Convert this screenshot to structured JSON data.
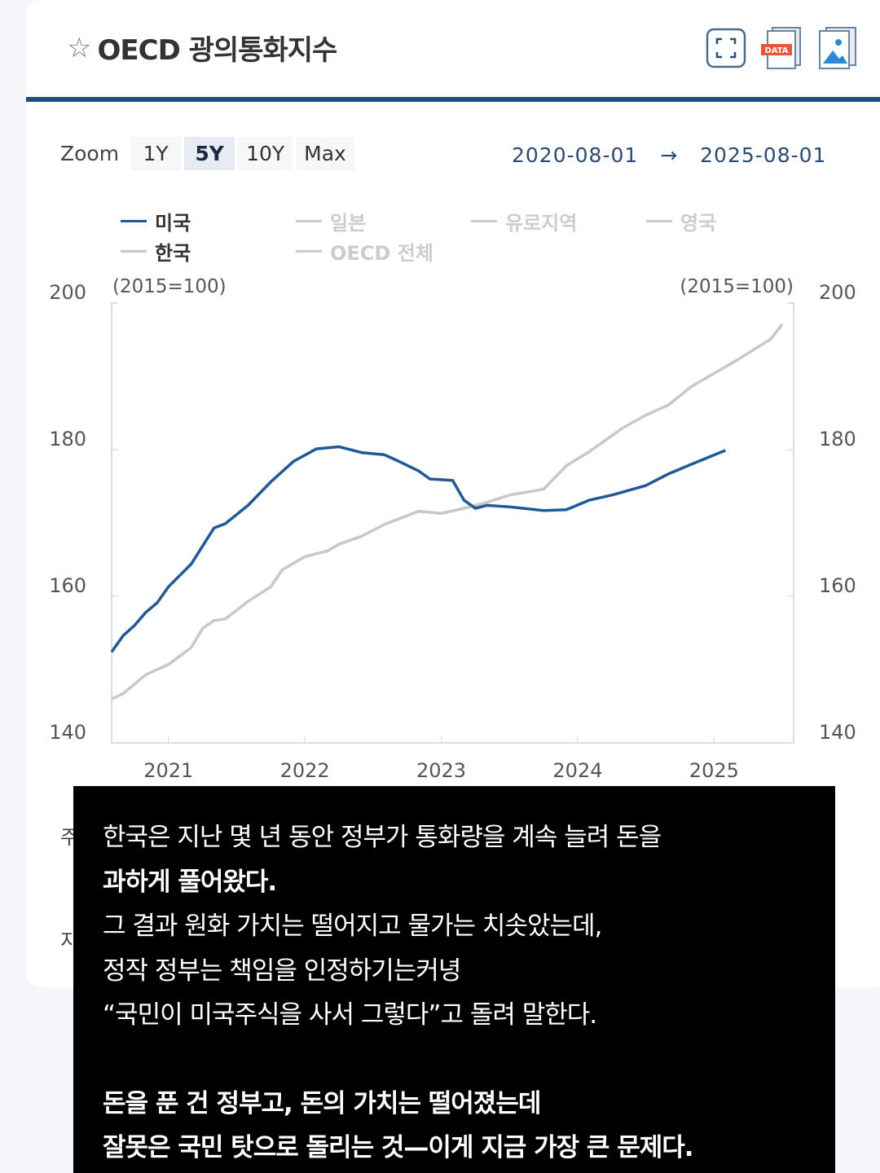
{
  "header": {
    "title": "OECD 광의통화지수",
    "icons": [
      "star-icon",
      "fullscreen-icon",
      "data-download-icon",
      "image-download-icon"
    ],
    "data_badge": "DATA"
  },
  "zoom": {
    "label": "Zoom",
    "options": [
      "1Y",
      "5Y",
      "10Y",
      "Max"
    ],
    "selected": "5Y"
  },
  "range": {
    "start": "2020-08-01",
    "arrow": "→",
    "end": "2025-08-01"
  },
  "colors": {
    "accent": "#1c4f7c",
    "us": "#1f5a96",
    "korea": "#c8c8c8"
  },
  "chart_data": {
    "type": "line",
    "unit_left": "(2015=100)",
    "unit_right": "(2015=100)",
    "ylim": [
      140,
      200
    ],
    "yticks": [
      "200",
      "180",
      "160",
      "140"
    ],
    "xlim": [
      "2020-08",
      "2025-08"
    ],
    "xticks": [
      "2021",
      "2022",
      "2023",
      "2024",
      "2025"
    ],
    "legend": [
      {
        "name": "미국",
        "visible": true
      },
      {
        "name": "일본",
        "visible": false
      },
      {
        "name": "유로지역",
        "visible": false
      },
      {
        "name": "영국",
        "visible": false
      },
      {
        "name": "한국",
        "visible": true
      },
      {
        "name": "OECD 전체",
        "visible": false
      }
    ],
    "legend_position": "top-left",
    "grid": false,
    "series": [
      {
        "name": "미국",
        "color": "#1f5a96",
        "points": [
          [
            "2020-08",
            152.4
          ],
          [
            "2020-09",
            154.6
          ],
          [
            "2020-10",
            156
          ],
          [
            "2020-11",
            157.8
          ],
          [
            "2020-12",
            159.1
          ],
          [
            "2021-01",
            161.3
          ],
          [
            "2021-03",
            164.4
          ],
          [
            "2021-05",
            169.3
          ],
          [
            "2021-06",
            169.9
          ],
          [
            "2021-08",
            172.4
          ],
          [
            "2021-10",
            175.6
          ],
          [
            "2021-12",
            178.4
          ],
          [
            "2022-02",
            180.1
          ],
          [
            "2022-04",
            180.4
          ],
          [
            "2022-06",
            179.6
          ],
          [
            "2022-08",
            179.3
          ],
          [
            "2022-09",
            178.6
          ],
          [
            "2022-11",
            177.1
          ],
          [
            "2022-12",
            176
          ],
          [
            "2023-02",
            175.8
          ],
          [
            "2023-03",
            173.1
          ],
          [
            "2023-04",
            172
          ],
          [
            "2023-05",
            172.4
          ],
          [
            "2023-07",
            172.2
          ],
          [
            "2023-10",
            171.7
          ],
          [
            "2023-12",
            171.8
          ],
          [
            "2024-02",
            173.1
          ],
          [
            "2024-04",
            173.8
          ],
          [
            "2024-07",
            175.1
          ],
          [
            "2024-09",
            176.7
          ],
          [
            "2024-11",
            178
          ],
          [
            "2025-02",
            179.9
          ]
        ]
      },
      {
        "name": "한국",
        "color": "#c8c8c8",
        "points": [
          [
            "2020-08",
            146
          ],
          [
            "2020-09",
            146.7
          ],
          [
            "2020-11",
            149.3
          ],
          [
            "2021-01",
            150.7
          ],
          [
            "2021-03",
            153
          ],
          [
            "2021-04",
            155.6
          ],
          [
            "2021-05",
            156.7
          ],
          [
            "2021-06",
            156.9
          ],
          [
            "2021-08",
            159.3
          ],
          [
            "2021-10",
            161.3
          ],
          [
            "2021-11",
            163.6
          ],
          [
            "2022-01",
            165.4
          ],
          [
            "2022-03",
            166.2
          ],
          [
            "2022-04",
            167.1
          ],
          [
            "2022-06",
            168.2
          ],
          [
            "2022-08",
            169.8
          ],
          [
            "2022-09",
            170.4
          ],
          [
            "2022-11",
            171.6
          ],
          [
            "2023-01",
            171.3
          ],
          [
            "2023-03",
            172
          ],
          [
            "2023-05",
            172.8
          ],
          [
            "2023-07",
            173.8
          ],
          [
            "2023-10",
            174.6
          ],
          [
            "2023-12",
            177.8
          ],
          [
            "2024-02",
            179.7
          ],
          [
            "2024-04",
            181.9
          ],
          [
            "2024-05",
            183
          ],
          [
            "2024-07",
            184.7
          ],
          [
            "2024-09",
            186.1
          ],
          [
            "2024-11",
            188.6
          ],
          [
            "2025-01",
            190.4
          ],
          [
            "2025-03",
            192.2
          ],
          [
            "2025-06",
            195.1
          ],
          [
            "2025-07",
            197.1
          ]
        ]
      }
    ]
  },
  "fragments": {
    "a": "주",
    "b": "지"
  },
  "overlay": {
    "lines": [
      "한국은 지난 몇 년 동안 정부가 통화량을 계속 늘려 돈을",
      "과하게 풀어왔다.",
      "그 결과 원화 가치는 떨어지고 물가는 치솟았는데,",
      "정작 정부는 책임을 인정하기는커녕",
      "“국민이 미국주식을 사서 그렇다”고 돌려 말한다.",
      "",
      "돈을 푼 건 정부고, 돈의 가치는 떨어졌는데",
      "잘못은 국민 탓으로 돌리는 것—이게 지금 가장 큰 문제다."
    ]
  }
}
